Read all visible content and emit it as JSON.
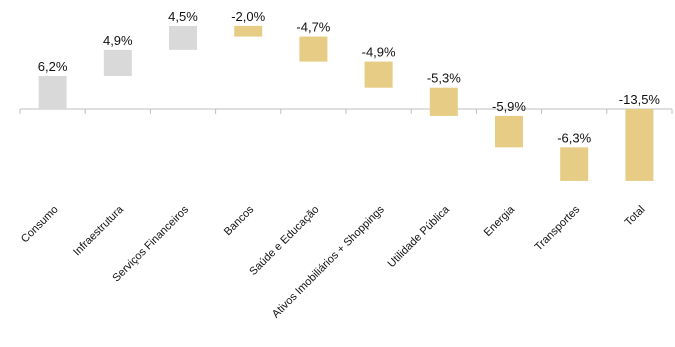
{
  "chart_data": {
    "type": "bar",
    "subtype": "waterfall",
    "categories": [
      "Consumo",
      "Infraestrutura",
      "Serviços Financeiros",
      "Bancos",
      "Saúde e Educação",
      "Ativos Imobiliários + Shoppings",
      "Utilidade Pública",
      "Energia",
      "Transportes",
      "Total"
    ],
    "values": [
      6.2,
      4.9,
      4.5,
      -2.0,
      -4.7,
      -4.9,
      -5.3,
      -5.9,
      -6.3,
      -13.5
    ],
    "value_labels": [
      "6,2%",
      "4,9%",
      "4,5%",
      "-2,0%",
      "-4,7%",
      "-4,9%",
      "-5,3%",
      "-5,9%",
      "-6,3%",
      "-13,5%"
    ],
    "is_total": [
      false,
      false,
      false,
      false,
      false,
      false,
      false,
      false,
      false,
      true
    ],
    "colors": {
      "positive": "#d9d9d9",
      "negative": "#e6cc85"
    },
    "ylim": [
      -13.5,
      15.6
    ],
    "grid": false,
    "legend": "none"
  }
}
